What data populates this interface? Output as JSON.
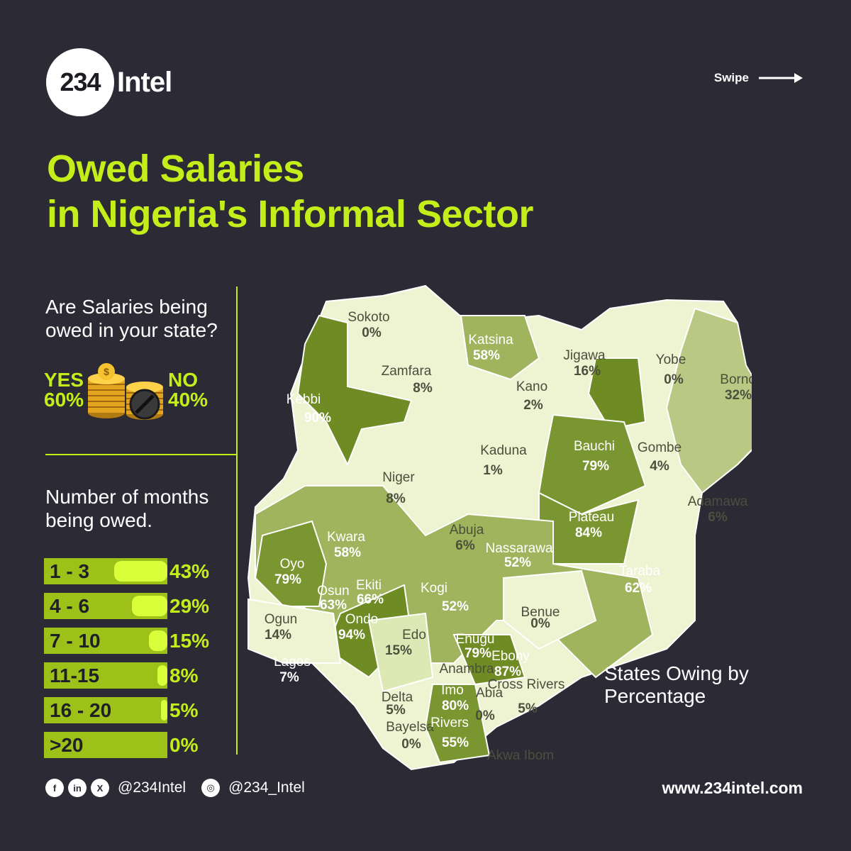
{
  "brand": {
    "logo_number": "234",
    "logo_word": "Intel"
  },
  "swipe": {
    "label": "Swipe"
  },
  "title": {
    "line1": "Owed Salaries",
    "line2": "in Nigeria's Informal Sector"
  },
  "poll": {
    "question": "Are Salaries being owed in your state?",
    "yes_label": "YES",
    "yes_value": "60%",
    "no_label": "NO",
    "no_value": "40%"
  },
  "months": {
    "question": "Number of months being owed.",
    "rows": [
      {
        "label": "1 - 3",
        "value": "43%",
        "fraction": 0.43
      },
      {
        "label": "4 - 6",
        "value": "29%",
        "fraction": 0.29
      },
      {
        "label": "7 - 10",
        "value": "15%",
        "fraction": 0.15
      },
      {
        "label": "11-15",
        "value": "8%",
        "fraction": 0.08
      },
      {
        "label": "16 - 20",
        "value": "5%",
        "fraction": 0.05
      },
      {
        "label": ">20",
        "value": "0%",
        "fraction": 0.0
      }
    ]
  },
  "map": {
    "caption": "States Owing by Percentage",
    "states": [
      {
        "name": "Sokoto",
        "pct": "0%"
      },
      {
        "name": "Katsina",
        "pct": "58%"
      },
      {
        "name": "Zamfara",
        "pct": "8%"
      },
      {
        "name": "Jigawa",
        "pct": "16%"
      },
      {
        "name": "Yobe",
        "pct": "0%"
      },
      {
        "name": "Borno",
        "pct": "32%"
      },
      {
        "name": "Kebbi",
        "pct": "90%"
      },
      {
        "name": "Kano",
        "pct": "2%"
      },
      {
        "name": "Kaduna",
        "pct": "1%"
      },
      {
        "name": "Bauchi",
        "pct": "79%"
      },
      {
        "name": "Gombe",
        "pct": "4%"
      },
      {
        "name": "Niger",
        "pct": "8%"
      },
      {
        "name": "Adamawa",
        "pct": "6%"
      },
      {
        "name": "Plateau",
        "pct": "84%"
      },
      {
        "name": "Abuja",
        "pct": "6%"
      },
      {
        "name": "Kwara",
        "pct": "58%"
      },
      {
        "name": "Nassarawa",
        "pct": "52%"
      },
      {
        "name": "Oyo",
        "pct": "79%"
      },
      {
        "name": "Taraba",
        "pct": "62%"
      },
      {
        "name": "Osun",
        "pct": "63%"
      },
      {
        "name": "Ekiti",
        "pct": "66%"
      },
      {
        "name": "Kogi",
        "pct": "52%"
      },
      {
        "name": "Benue",
        "pct": "0%"
      },
      {
        "name": "Ogun",
        "pct": "14%"
      },
      {
        "name": "Ondo",
        "pct": "94%"
      },
      {
        "name": "Edo",
        "pct": "15%"
      },
      {
        "name": "Enugu",
        "pct": "79%"
      },
      {
        "name": "Ebony",
        "pct": "87%"
      },
      {
        "name": "Lagos",
        "pct": "7%"
      },
      {
        "name": "Anambra",
        "pct": ""
      },
      {
        "name": "Delta",
        "pct": "5%"
      },
      {
        "name": "Imo",
        "pct": "80%"
      },
      {
        "name": "Abia",
        "pct": "0%"
      },
      {
        "name": "Cross Rivers",
        "pct": "5%"
      },
      {
        "name": "Bayelsa",
        "pct": "0%"
      },
      {
        "name": "Rivers",
        "pct": "55%"
      },
      {
        "name": "Akwa Ibom",
        "pct": ""
      }
    ]
  },
  "footer": {
    "icons": [
      "facebook-icon",
      "linkedin-icon",
      "x-icon",
      "instagram-icon"
    ],
    "handle_main": "@234Intel",
    "handle_instagram": "@234_Intel",
    "website": "www.234intel.com"
  },
  "colors": {
    "background": "#2b2a35",
    "accent": "#c4ee1a",
    "map_light": "#eef3d2",
    "map_pale": "#dde9b5",
    "map_mid": "#9fb45c",
    "map_dark": "#6e8b24"
  }
}
